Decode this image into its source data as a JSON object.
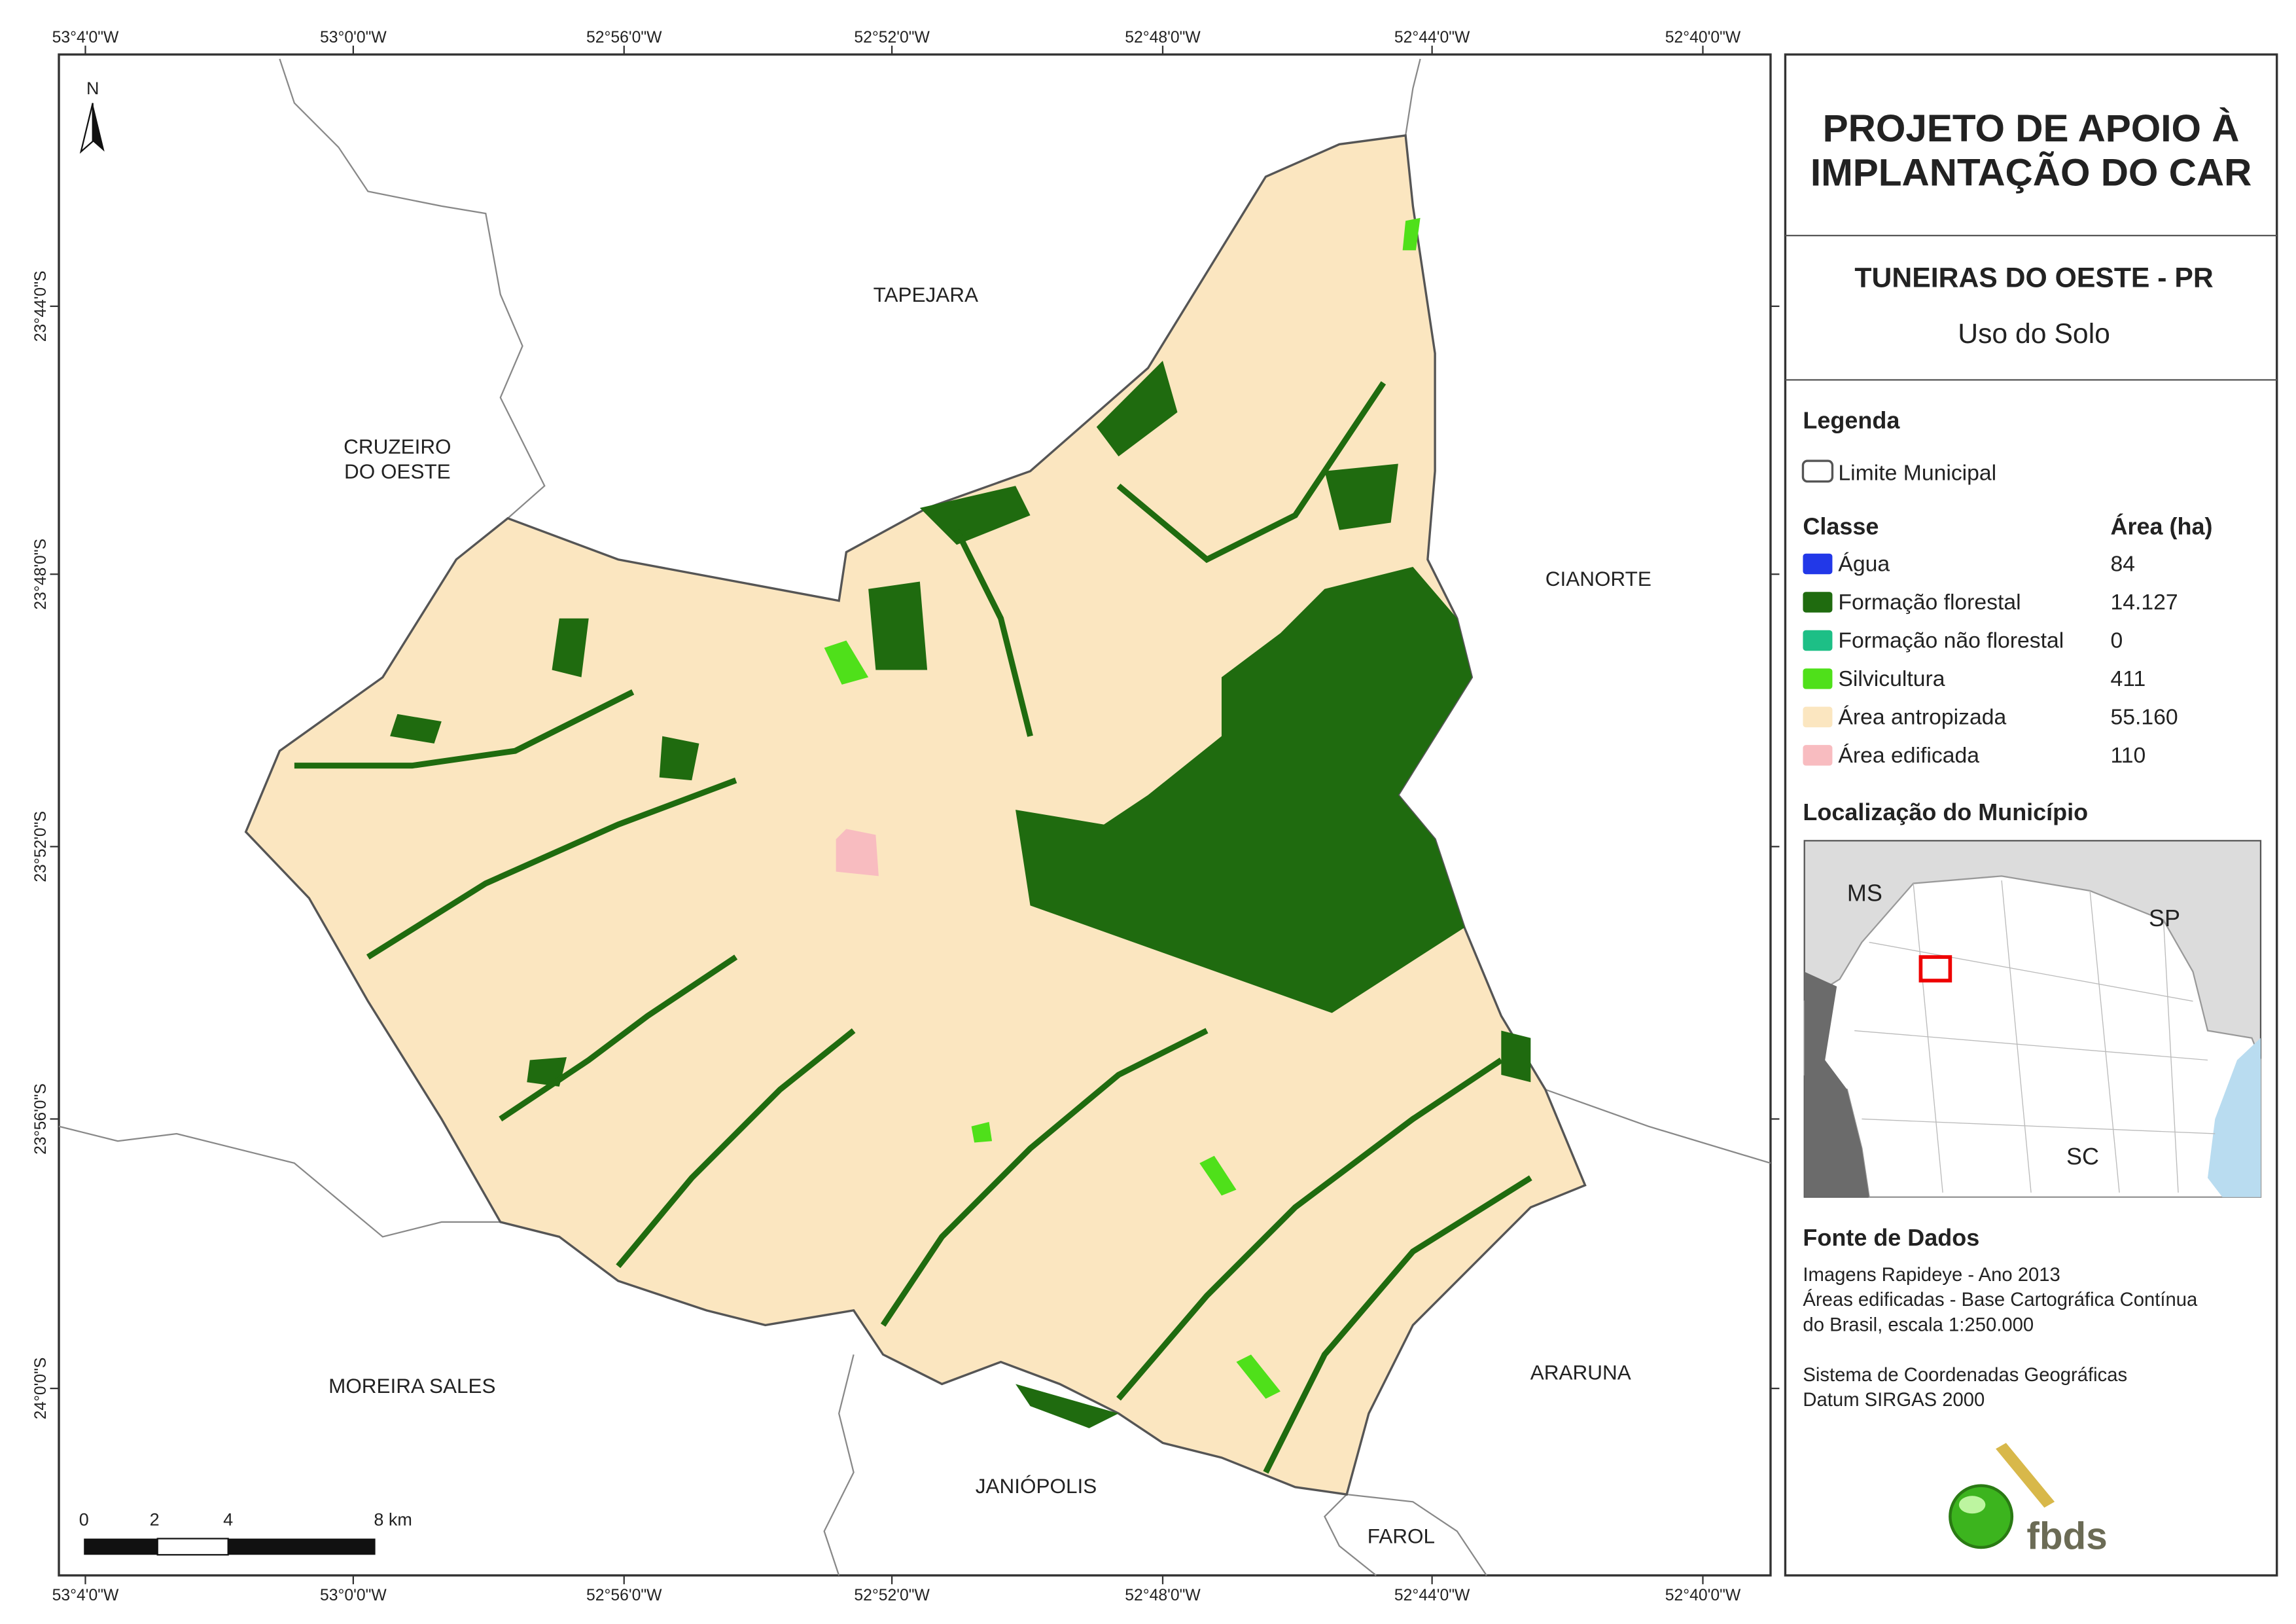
{
  "map": {
    "coords_x": [
      "53°4'0\"W",
      "53°0'0\"W",
      "52°56'0\"W",
      "52°52'0\"W",
      "52°48'0\"W",
      "52°44'0\"W",
      "52°40'0\"W"
    ],
    "coords_y": [
      "23°44'0\"S",
      "23°48'0\"S",
      "23°52'0\"S",
      "23°56'0\"S",
      "24°0'0\"S"
    ],
    "places": [
      {
        "lines": [
          "TAPEJARA"
        ]
      },
      {
        "lines": [
          "CRUZEIRO",
          "DO OESTE"
        ]
      },
      {
        "lines": [
          "CIANORTE"
        ]
      },
      {
        "lines": [
          "MOREIRA SALES"
        ]
      },
      {
        "lines": [
          "JANIÓPOLIS"
        ]
      },
      {
        "lines": [
          "ARARUNA"
        ]
      },
      {
        "lines": [
          "FAROL"
        ]
      }
    ],
    "north": "N",
    "scale_labels": [
      "0",
      "2",
      "4",
      "8 km"
    ]
  },
  "panel": {
    "title": [
      "PROJETO DE APOIO À",
      "IMPLANTAÇÃO DO CAR"
    ],
    "municipality": "TUNEIRAS DO OESTE - PR",
    "subtitle": "Uso do Solo",
    "legend": {
      "heading": "Legenda",
      "limit": "Limite Municipal",
      "class_header": "Classe",
      "area_header": "Área (ha)",
      "items": [
        {
          "name": "Água",
          "area": "84",
          "color": "#2238e8"
        },
        {
          "name": "Formação florestal",
          "area": "14.127",
          "color": "#1f6b0f"
        },
        {
          "name": "Formação não florestal",
          "area": "0",
          "color": "#1dbf86"
        },
        {
          "name": "Silvicultura",
          "area": "411",
          "color": "#4fe01a"
        },
        {
          "name": "Área antropizada",
          "area": "55.160",
          "color": "#fbe6c0"
        },
        {
          "name": "Área edificada",
          "area": "110",
          "color": "#f8bcc0"
        }
      ]
    },
    "location": {
      "heading": "Localização do Município",
      "states": [
        "MS",
        "SP",
        "SC"
      ]
    },
    "source": {
      "heading": "Fonte de Dados",
      "lines": [
        "Imagens Rapideye - Ano 2013",
        "Áreas edificadas - Base Cartográfica Contínua",
        "do Brasil, escala 1:250.000",
        "",
        "Sistema de Coordenadas Geográficas",
        "Datum SIRGAS 2000"
      ]
    },
    "logo": "fbds"
  }
}
